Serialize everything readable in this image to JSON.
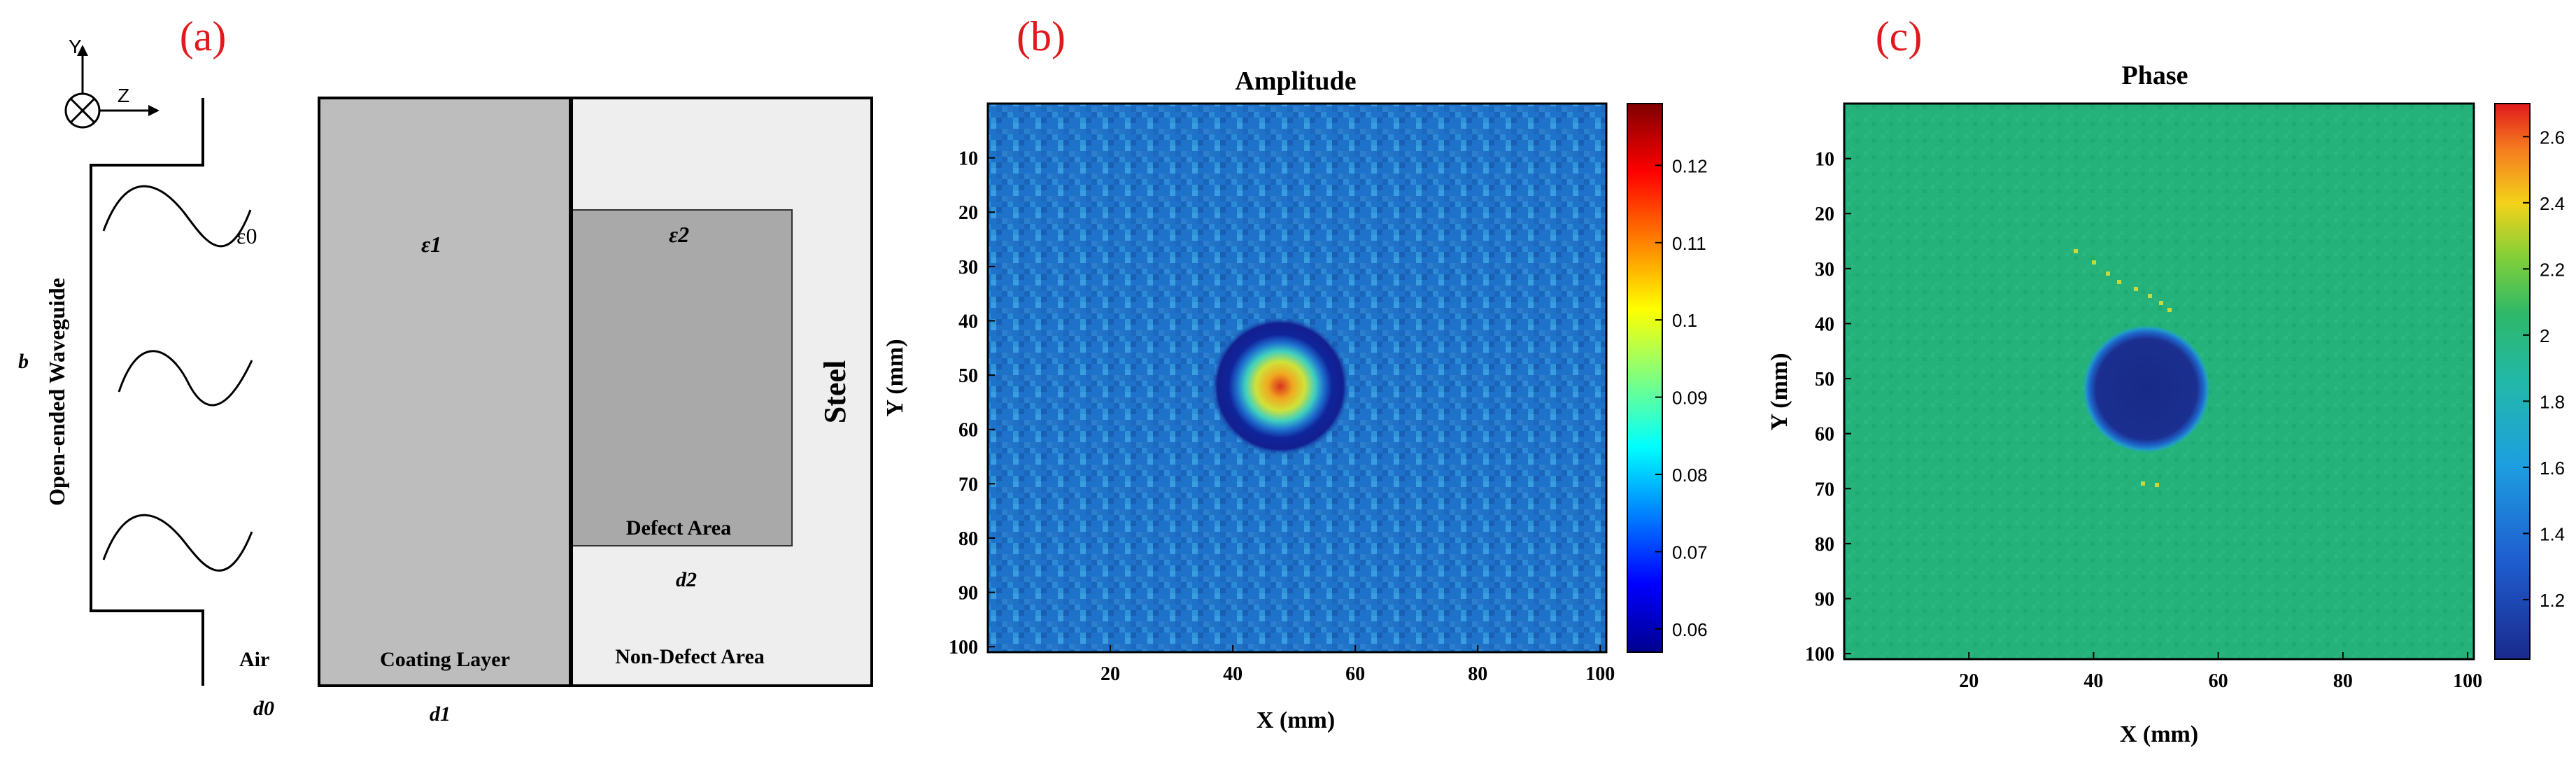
{
  "panel_a": {
    "label": "(a)",
    "axes": {
      "y": "Y",
      "z": "Z"
    },
    "waveguide_label": "Open-ended Waveguide",
    "b_label": "b",
    "eps0": "ε0",
    "eps1": "ε1",
    "eps2": "ε2",
    "air": "Air",
    "coating": "Coating Layer",
    "non_defect": "Non-Defect Area",
    "defect": "Defect Area",
    "steel": "Steel",
    "d0": "d0",
    "d1": "d1",
    "d2": "d2"
  },
  "chart_data": [
    {
      "type": "heatmap",
      "panel_label": "(b)",
      "title": "Amplitude",
      "xlabel": "X (mm)",
      "ylabel": "Y (mm)",
      "xlim": [
        0,
        101
      ],
      "ylim": [
        0,
        101
      ],
      "x_ticks": [
        "20",
        "40",
        "60",
        "80",
        "100"
      ],
      "y_ticks": [
        "10",
        "20",
        "30",
        "40",
        "50",
        "60",
        "70",
        "80",
        "90",
        "100"
      ],
      "colorbar_range": [
        0.057,
        0.128
      ],
      "colorbar_ticks": [
        "0.06",
        "0.07",
        "0.08",
        "0.09",
        "0.1",
        "0.11",
        "0.12"
      ],
      "feature": {
        "center_x": 50,
        "center_y": 53,
        "description": "low-amplitude ring with high-amplitude core"
      }
    },
    {
      "type": "heatmap",
      "panel_label": "(c)",
      "title": "Phase",
      "xlabel": "X (mm)",
      "ylabel": "Y (mm)",
      "xlim": [
        0,
        101
      ],
      "ylim": [
        0,
        101
      ],
      "x_ticks": [
        "20",
        "40",
        "60",
        "80",
        "100"
      ],
      "y_ticks": [
        "10",
        "20",
        "30",
        "40",
        "50",
        "60",
        "70",
        "80",
        "90",
        "100"
      ],
      "colorbar_range": [
        1.02,
        2.7
      ],
      "colorbar_ticks": [
        "1.2",
        "1.4",
        "1.6",
        "1.8",
        "2",
        "2.2",
        "2.4",
        "2.6"
      ],
      "feature": {
        "center_x": 50,
        "center_y": 53,
        "description": "low-phase disk"
      }
    }
  ],
  "colors": {
    "panel_label": "#e0191b",
    "coating_fill": "#bdbdbd",
    "defect_fill": "#a9a9a9",
    "non_defect_fill": "#eeeeee"
  }
}
